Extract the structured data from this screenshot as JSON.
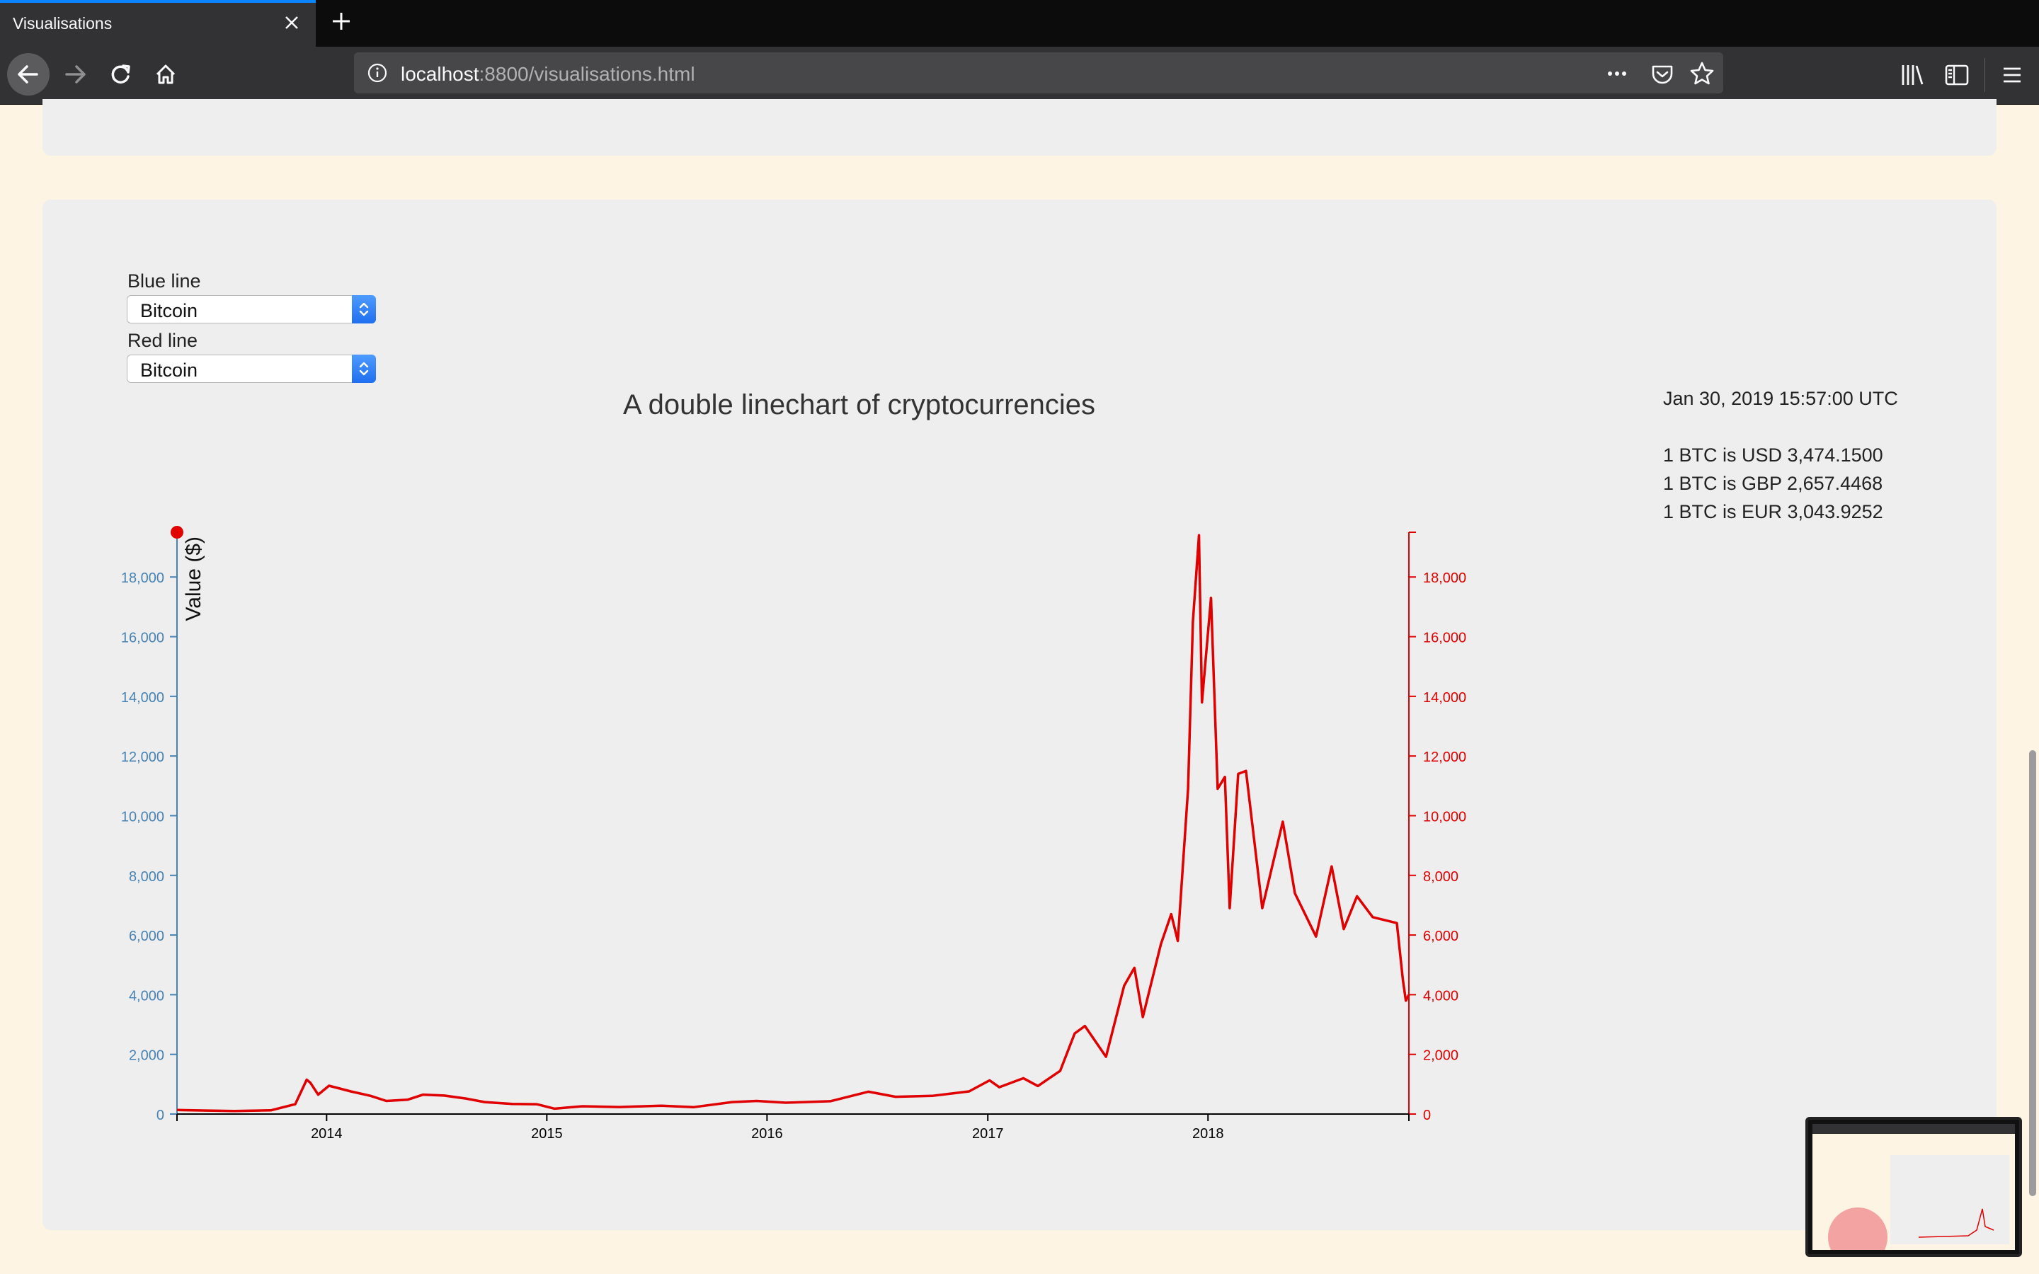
{
  "browser": {
    "tab_title": "Visualisations",
    "url_host": "localhost",
    "url_rest": ":8800/visualisations.html"
  },
  "controls": {
    "blue_label": "Blue line",
    "blue_value": "Bitcoin",
    "red_label": "Red line",
    "red_value": "Bitcoin"
  },
  "info": {
    "timestamp": "Jan 30, 2019 15:57:00 UTC",
    "usd": "1 BTC is USD 3,474.1500",
    "gbp": "1 BTC is GBP 2,657.4468",
    "eur": "1 BTC is EUR 3,043.9252"
  },
  "colors": {
    "blue_series": "#4682b4",
    "red_series": "#e00000",
    "card": "#eeeeee",
    "page": "#fdf4e3"
  },
  "chart_data": {
    "type": "line",
    "title": "A double linechart of cryptocurrencies",
    "ylabel": "Value ($)",
    "xlabel": "",
    "x_ticks": [
      "2014",
      "2015",
      "2016",
      "2017",
      "2018"
    ],
    "y_ticks": [
      "0",
      "2,000",
      "4,000",
      "6,000",
      "8,000",
      "10,000",
      "12,000",
      "14,000",
      "16,000",
      "18,000"
    ],
    "ylim": [
      0,
      19500
    ],
    "xlim": [
      "2013-04-28",
      "2018-11-30"
    ],
    "series": [
      {
        "name": "Bitcoin",
        "color": "#e00000",
        "points": [
          [
            "2013-04-28",
            135
          ],
          [
            "2013-06-01",
            120
          ],
          [
            "2013-08-01",
            100
          ],
          [
            "2013-10-01",
            125
          ],
          [
            "2013-11-10",
            330
          ],
          [
            "2013-11-29",
            1150
          ],
          [
            "2013-12-05",
            1050
          ],
          [
            "2013-12-18",
            650
          ],
          [
            "2014-01-05",
            950
          ],
          [
            "2014-02-10",
            760
          ],
          [
            "2014-03-15",
            610
          ],
          [
            "2014-04-10",
            440
          ],
          [
            "2014-05-15",
            480
          ],
          [
            "2014-06-10",
            650
          ],
          [
            "2014-07-15",
            620
          ],
          [
            "2014-08-20",
            520
          ],
          [
            "2014-09-20",
            400
          ],
          [
            "2014-11-05",
            340
          ],
          [
            "2014-12-15",
            330
          ],
          [
            "2015-01-14",
            180
          ],
          [
            "2015-03-01",
            260
          ],
          [
            "2015-05-01",
            235
          ],
          [
            "2015-07-10",
            280
          ],
          [
            "2015-09-01",
            230
          ],
          [
            "2015-11-04",
            400
          ],
          [
            "2015-12-15",
            440
          ],
          [
            "2016-02-01",
            380
          ],
          [
            "2016-04-15",
            430
          ],
          [
            "2016-06-17",
            750
          ],
          [
            "2016-08-01",
            580
          ],
          [
            "2016-10-01",
            610
          ],
          [
            "2016-12-01",
            760
          ],
          [
            "2017-01-04",
            1130
          ],
          [
            "2017-01-20",
            900
          ],
          [
            "2017-03-01",
            1200
          ],
          [
            "2017-03-25",
            940
          ],
          [
            "2017-05-01",
            1450
          ],
          [
            "2017-05-25",
            2700
          ],
          [
            "2017-06-11",
            2950
          ],
          [
            "2017-07-16",
            1920
          ],
          [
            "2017-08-15",
            4300
          ],
          [
            "2017-09-01",
            4900
          ],
          [
            "2017-09-15",
            3250
          ],
          [
            "2017-10-15",
            5700
          ],
          [
            "2017-11-01",
            6700
          ],
          [
            "2017-11-12",
            5800
          ],
          [
            "2017-11-29",
            10900
          ],
          [
            "2017-12-07",
            16500
          ],
          [
            "2017-12-17",
            19400
          ],
          [
            "2017-12-22",
            13800
          ],
          [
            "2018-01-06",
            17300
          ],
          [
            "2018-01-17",
            10900
          ],
          [
            "2018-01-29",
            11300
          ],
          [
            "2018-02-06",
            6900
          ],
          [
            "2018-02-20",
            11400
          ],
          [
            "2018-03-05",
            11500
          ],
          [
            "2018-04-01",
            6900
          ],
          [
            "2018-05-05",
            9800
          ],
          [
            "2018-05-25",
            7400
          ],
          [
            "2018-06-29",
            5950
          ],
          [
            "2018-07-25",
            8300
          ],
          [
            "2018-08-14",
            6200
          ],
          [
            "2018-09-05",
            7300
          ],
          [
            "2018-10-01",
            6600
          ],
          [
            "2018-11-10",
            6400
          ],
          [
            "2018-11-20",
            4500
          ],
          [
            "2018-11-25",
            3800
          ],
          [
            "2018-11-30",
            4000
          ]
        ]
      }
    ]
  }
}
